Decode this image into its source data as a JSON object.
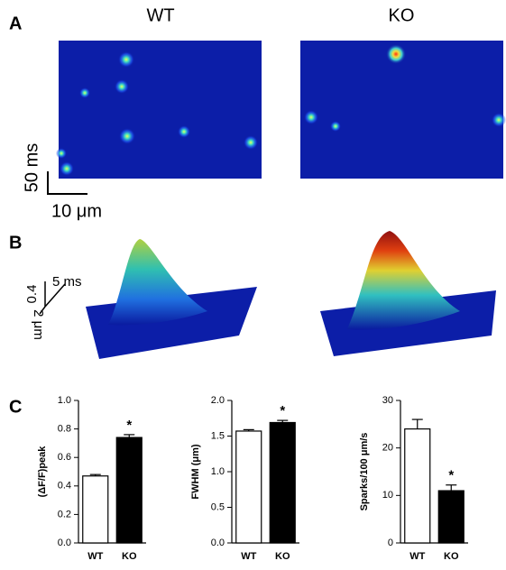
{
  "figure": {
    "panel_a": "A",
    "panel_b": "B",
    "panel_c": "C",
    "wt": "WT",
    "ko": "KO",
    "scale_time": "50 ms",
    "scale_space": "10 μm",
    "scale_amp": "0.4",
    "scale_time_b": "5 ms",
    "scale_space_b": "2 μm"
  },
  "chart_data": [
    {
      "type": "bar",
      "y_label": "(ΔF/F)peak",
      "categories": [
        "WT",
        "KO"
      ],
      "values": [
        0.47,
        0.74
      ],
      "errors": [
        0.01,
        0.02
      ],
      "colors": [
        "#ffffff",
        "#000000"
      ],
      "ylim": [
        0,
        1.0
      ],
      "yticks": [
        {
          "value": 0,
          "label": "0.0"
        },
        0.2,
        0.4,
        0.6,
        0.8,
        {
          "value": 1,
          "label": "1.0"
        }
      ],
      "annotation": "*"
    },
    {
      "type": "bar",
      "y_label": "FWHM (μm)",
      "categories": [
        "WT",
        "KO"
      ],
      "values": [
        1.57,
        1.69
      ],
      "errors": [
        0.02,
        0.03
      ],
      "colors": [
        "#ffffff",
        "#000000"
      ],
      "ylim": [
        0,
        2.0
      ],
      "yticks": [
        {
          "value": 0,
          "label": "0.0"
        },
        0.5,
        {
          "value": 1,
          "label": "1.0"
        },
        1.5,
        {
          "value": 2,
          "label": "2.0"
        }
      ],
      "annotation": "*"
    },
    {
      "type": "bar",
      "y_label": "Sparks/100 μm/s",
      "categories": [
        "WT",
        "KO"
      ],
      "values": [
        24,
        11
      ],
      "errors": [
        2,
        1.2
      ],
      "colors": [
        "#ffffff",
        "#000000"
      ],
      "ylim": [
        0,
        30
      ],
      "yticks": [
        0,
        10,
        20,
        30
      ],
      "annotation": "*"
    }
  ]
}
